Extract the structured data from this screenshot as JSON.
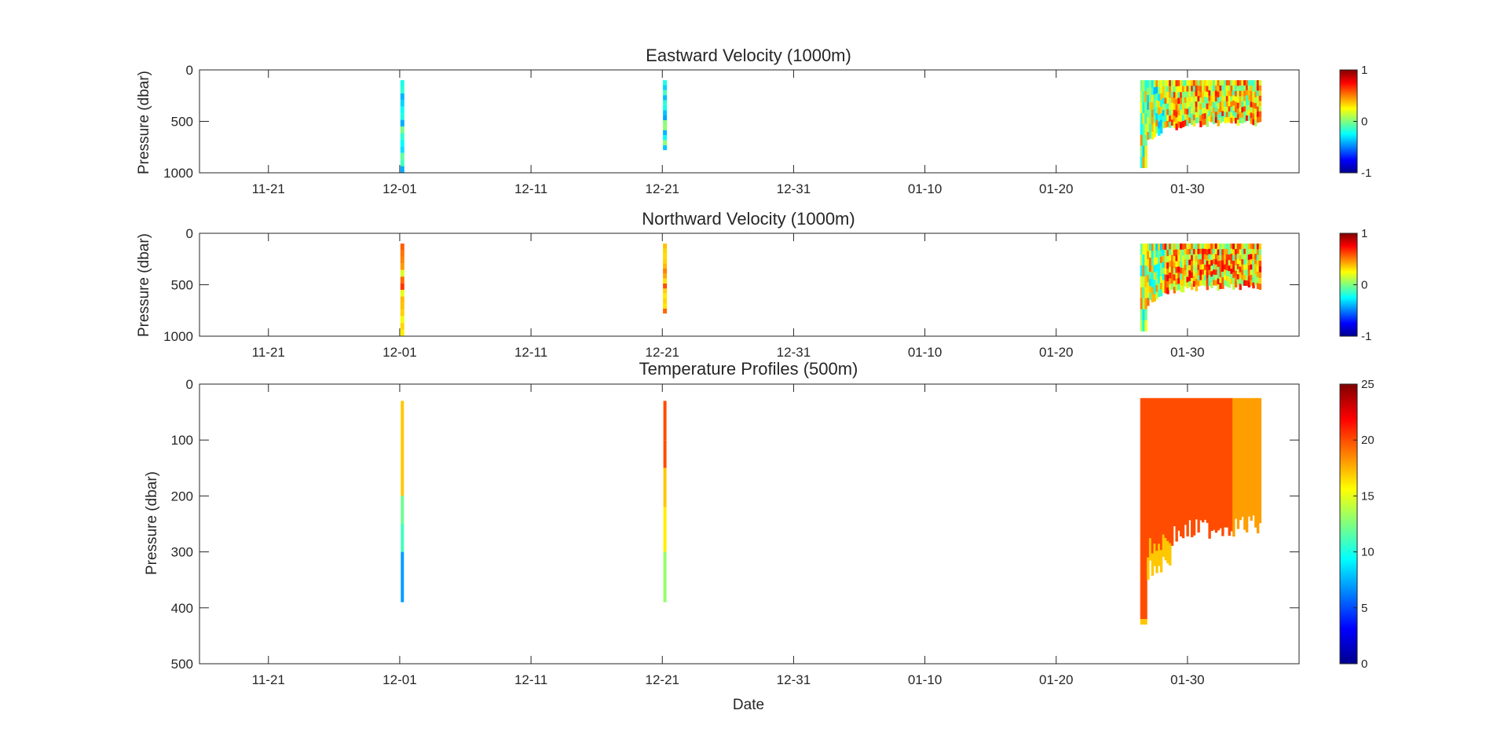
{
  "figure": {
    "xlabel": "Date",
    "x_tick_labels": [
      "11-21",
      "12-01",
      "12-11",
      "12-21",
      "12-31",
      "01-10",
      "01-20",
      "01-30"
    ]
  },
  "chart_data": [
    {
      "type": "heatmap",
      "title": "Eastward Velocity (1000m)",
      "xlabel": "",
      "ylabel": "Pressure (dbar)",
      "x_axis": "date",
      "x_ticks": [
        "11-21",
        "12-01",
        "12-11",
        "12-21",
        "12-31",
        "01-10",
        "01-20",
        "01-30"
      ],
      "y_ticks": [
        "0",
        "500",
        "1000"
      ],
      "ylim": [
        1000,
        0
      ],
      "y_reversed": true,
      "colorbar": {
        "min": -1,
        "max": 1,
        "ticks": [
          "-1",
          "0",
          "1"
        ],
        "colormap": "jet"
      },
      "segments": [
        {
          "x_start": "12-01",
          "x_end": "12-01",
          "p_top": 100,
          "p_bottom": 1000,
          "typical_value": -0.2
        },
        {
          "x_start": "12-21",
          "x_end": "12-21",
          "p_top": 100,
          "p_bottom": 780,
          "typical_value": -0.2
        },
        {
          "x_start": "01-26",
          "x_end": "02-04",
          "p_top": 100,
          "p_bottom": 520,
          "typical_value": 0.3,
          "range": [
            -1,
            1
          ]
        }
      ]
    },
    {
      "type": "heatmap",
      "title": "Northward Velocity (1000m)",
      "xlabel": "",
      "ylabel": "Pressure (dbar)",
      "x_axis": "date",
      "x_ticks": [
        "11-21",
        "12-01",
        "12-11",
        "12-21",
        "12-31",
        "01-10",
        "01-20",
        "01-30"
      ],
      "y_ticks": [
        "0",
        "500",
        "1000"
      ],
      "ylim": [
        1000,
        0
      ],
      "y_reversed": true,
      "colorbar": {
        "min": -1,
        "max": 1,
        "ticks": [
          "-1",
          "0",
          "1"
        ],
        "colormap": "jet"
      },
      "segments": [
        {
          "x_start": "12-01",
          "x_end": "12-01",
          "p_top": 100,
          "p_bottom": 1000,
          "typical_value": 0.4
        },
        {
          "x_start": "12-21",
          "x_end": "12-21",
          "p_top": 100,
          "p_bottom": 780,
          "typical_value": 0.5
        },
        {
          "x_start": "01-26",
          "x_end": "02-04",
          "p_top": 100,
          "p_bottom": 520,
          "typical_value": 0.35,
          "range": [
            -1,
            1
          ]
        }
      ]
    },
    {
      "type": "heatmap",
      "title": "Temperature Profiles (500m)",
      "xlabel": "Date",
      "ylabel": "Pressure (dbar)",
      "x_axis": "date",
      "x_ticks": [
        "11-21",
        "12-01",
        "12-11",
        "12-21",
        "12-31",
        "01-10",
        "01-20",
        "01-30"
      ],
      "y_ticks": [
        "0",
        "100",
        "200",
        "300",
        "400",
        "500"
      ],
      "ylim": [
        500,
        0
      ],
      "y_reversed": true,
      "colorbar": {
        "min": 0,
        "max": 25,
        "ticks": [
          "0",
          "5",
          "10",
          "15",
          "20",
          "25"
        ],
        "colormap": "jet"
      },
      "segments": [
        {
          "x_start": "12-01",
          "x_end": "12-01",
          "p_top": 30,
          "p_bottom": 390,
          "values_by_depth": [
            [
              30,
              17
            ],
            [
              180,
              17
            ],
            [
              200,
              12
            ],
            [
              250,
              11
            ],
            [
              300,
              7
            ],
            [
              390,
              7
            ]
          ]
        },
        {
          "x_start": "12-21",
          "x_end": "12-21",
          "p_top": 30,
          "p_bottom": 390,
          "values_by_depth": [
            [
              30,
              20
            ],
            [
              100,
              20
            ],
            [
              150,
              17
            ],
            [
              220,
              16
            ],
            [
              300,
              13
            ],
            [
              390,
              13
            ]
          ]
        },
        {
          "x_start": "01-26",
          "x_end": "02-04",
          "p_top": 25,
          "p_bottom": 420,
          "typical_value": 20
        }
      ]
    }
  ]
}
